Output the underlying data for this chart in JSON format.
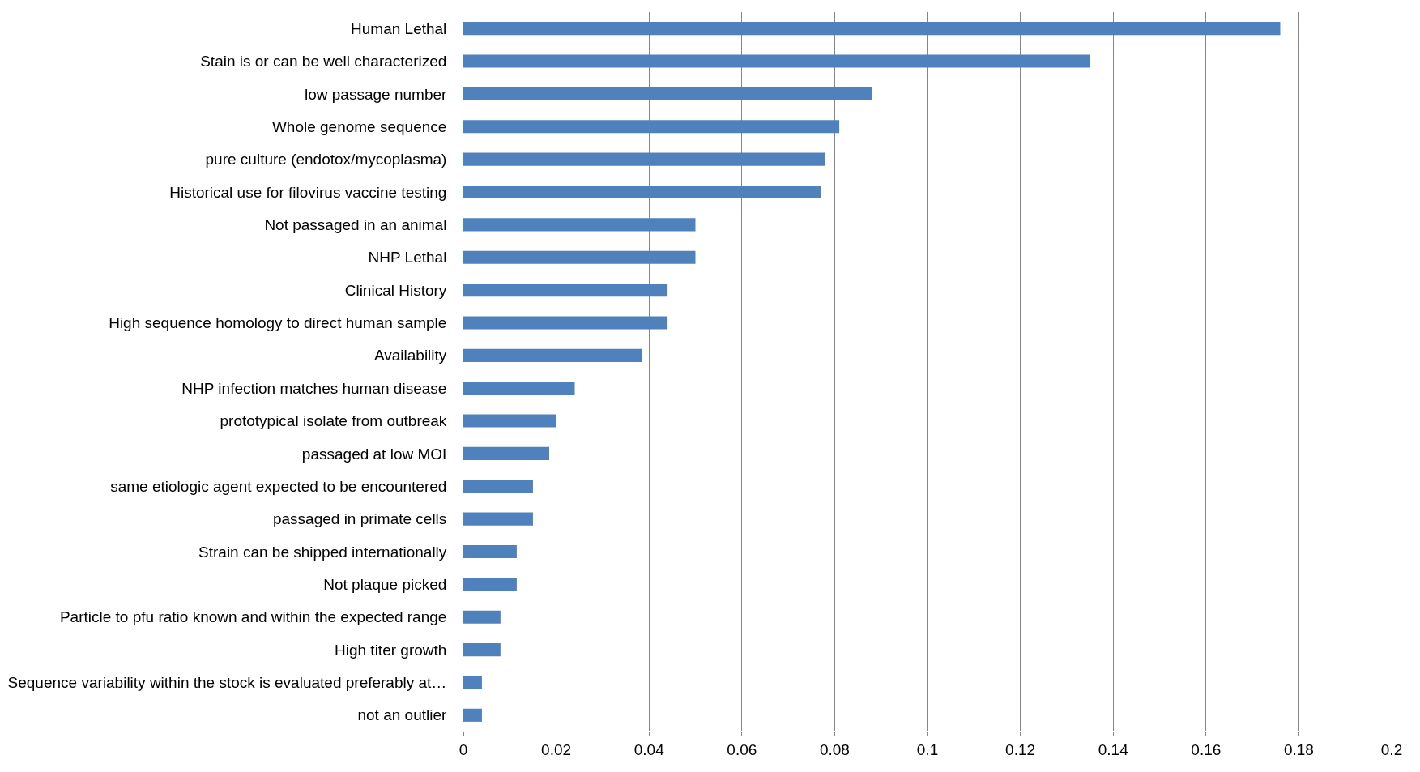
{
  "chart_data": {
    "type": "bar",
    "orientation": "horizontal",
    "categories": [
      "Human Lethal",
      "Stain is or can be well characterized",
      "low passage number",
      "Whole genome sequence",
      "pure culture (endotox/mycoplasma)",
      "Historical use for filovirus vaccine testing",
      "Not passaged in an animal",
      "NHP Lethal",
      "Clinical History",
      "High sequence homology to direct human sample",
      "Availability",
      "NHP infection matches human disease",
      "prototypical isolate from outbreak",
      "passaged at low MOI",
      "same etiologic agent expected to be encountered",
      "passaged in primate cells",
      "Strain can be shipped internationally",
      "Not plaque picked",
      "Particle to pfu ratio known and within the expected range",
      "High titer growth",
      "Sequence variability within the stock is evaluated preferably at…",
      "not an outlier"
    ],
    "values": [
      0.176,
      0.135,
      0.088,
      0.081,
      0.078,
      0.077,
      0.05,
      0.05,
      0.044,
      0.044,
      0.0385,
      0.024,
      0.02,
      0.0185,
      0.015,
      0.015,
      0.0115,
      0.0115,
      0.008,
      0.008,
      0.004,
      0.004
    ],
    "color": "#4f81bd",
    "xlim": [
      0,
      0.2
    ],
    "xticks": [
      0,
      0.02,
      0.04,
      0.06,
      0.08,
      0.1,
      0.12,
      0.14,
      0.16,
      0.18,
      0.2
    ],
    "grid": "x"
  }
}
